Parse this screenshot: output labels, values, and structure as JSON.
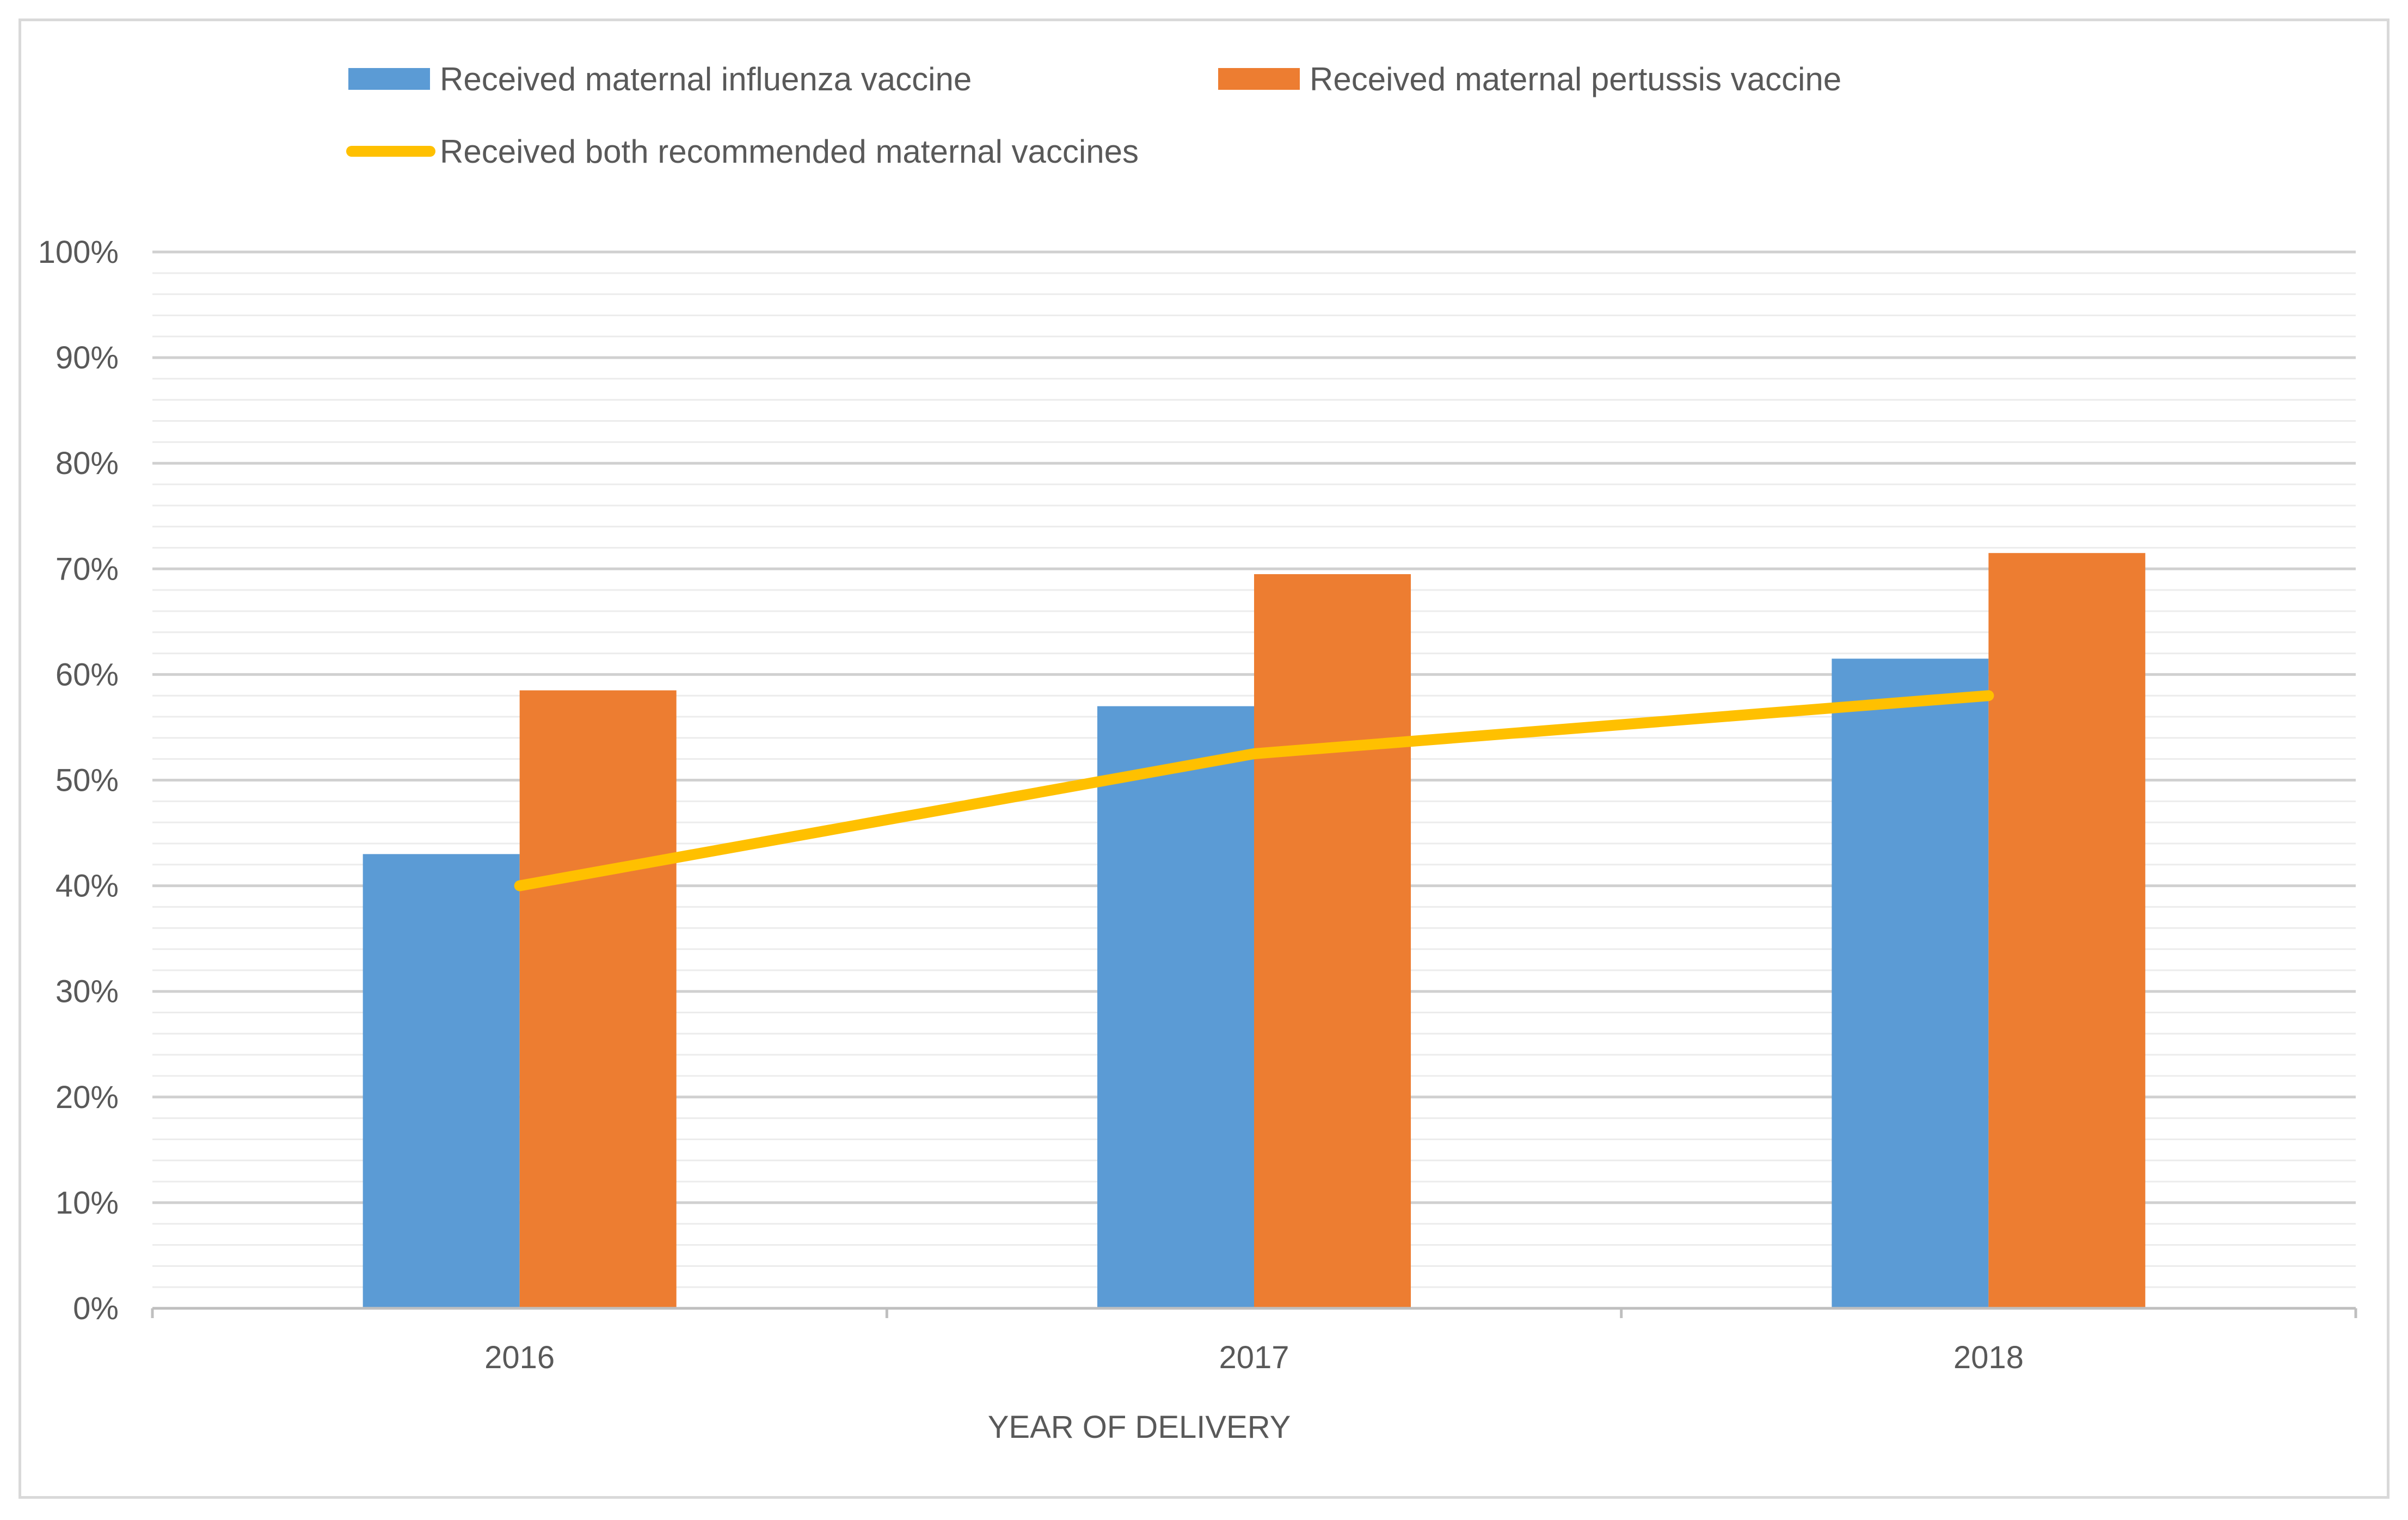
{
  "chart_data": {
    "type": "bar",
    "categories": [
      "2016",
      "2017",
      "2018"
    ],
    "series": [
      {
        "name": "Received maternal influenza vaccine",
        "kind": "bar",
        "color": "#5b9bd5",
        "values": [
          0.43,
          0.57,
          0.615
        ]
      },
      {
        "name": "Received maternal pertussis  vaccine",
        "kind": "bar",
        "color": "#ed7d31",
        "values": [
          0.585,
          0.695,
          0.715
        ]
      },
      {
        "name": "Received both recommended maternal vaccines",
        "kind": "line",
        "color": "#ffc000",
        "values": [
          0.4,
          0.525,
          0.58
        ]
      }
    ],
    "xlabel": "YEAR OF  DELIVERY",
    "ylabel": "",
    "ylim": [
      0,
      1
    ],
    "yticks": [
      "0%",
      "10%",
      "20%",
      "30%",
      "40%",
      "50%",
      "60%",
      "70%",
      "80%",
      "90%",
      "100%"
    ],
    "grid": true,
    "minor_grid": true,
    "legend_position": "top"
  }
}
